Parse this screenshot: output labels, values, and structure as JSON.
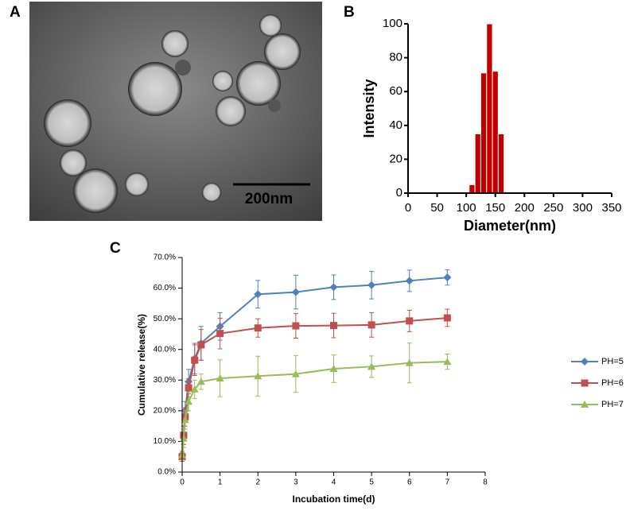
{
  "image": {
    "label": "A",
    "scale_bar": "200nm"
  },
  "chart_data": [
    {
      "type": "histogram",
      "panel_label": "B",
      "xlabel": "Diameter(nm)",
      "ylabel": "Intensity",
      "bins": [
        105,
        115,
        125,
        135,
        145,
        155,
        165
      ],
      "counts": [
        5,
        35,
        71,
        100,
        72,
        35
      ],
      "color": "#c00000",
      "xlim": [
        0,
        350
      ],
      "xticks": [
        0,
        50,
        100,
        150,
        200,
        250,
        300,
        350
      ],
      "ylim": [
        0,
        100
      ],
      "yticks": [
        0,
        20,
        40,
        60,
        80,
        100
      ]
    },
    {
      "type": "line",
      "panel_label": "C",
      "xlabel": "Incubation time(d)",
      "ylabel": "Cumulative release(%)",
      "x": [
        0,
        0.04,
        0.08,
        0.17,
        0.33,
        0.5,
        1,
        2,
        3,
        4,
        5,
        6,
        7
      ],
      "series": [
        {
          "name": "PH=5",
          "color": "#4f81bd",
          "marker": "diamond",
          "values": [
            5.5,
            12,
            20,
            29.5,
            37,
            42,
            47.5,
            58,
            58.7,
            60.3,
            61,
            62.4,
            63.5
          ],
          "errors": [
            1.5,
            3,
            3,
            4,
            5,
            5.5,
            4.5,
            4.5,
            5.5,
            4,
            4.5,
            3.5,
            2.5
          ]
        },
        {
          "name": "PH=6",
          "color": "#c0504d",
          "marker": "square",
          "values": [
            5,
            12,
            18,
            27.5,
            36.5,
            41.5,
            45.2,
            47,
            47.7,
            47.8,
            48,
            49.3,
            50.3
          ],
          "errors": [
            1.5,
            3,
            3,
            3,
            5,
            5,
            5,
            3,
            4,
            4,
            4,
            3.5,
            2.8
          ]
        },
        {
          "name": "PH=7",
          "color": "#9bbb59",
          "marker": "triangle",
          "values": [
            5.5,
            11,
            17,
            23,
            27,
            29.5,
            30.6,
            31.3,
            32,
            33.7,
            34.4,
            35.6,
            36
          ],
          "errors": [
            1.5,
            3,
            3,
            3,
            3,
            2.5,
            6,
            6.5,
            6,
            4.5,
            3.5,
            6.5,
            2.5
          ]
        }
      ],
      "xlim": [
        0,
        8
      ],
      "xticks": [
        0,
        1,
        2,
        3,
        4,
        5,
        6,
        7,
        8
      ],
      "ylim": [
        0,
        70
      ],
      "yticks": [
        {
          "value": 0,
          "label": "0.0%"
        },
        {
          "value": 10,
          "label": "10.0%"
        },
        {
          "value": 20,
          "label": "20.0%"
        },
        {
          "value": 30,
          "label": "30.0%"
        },
        {
          "value": 40,
          "label": "40.0%"
        },
        {
          "value": 50,
          "label": "50.0%"
        },
        {
          "value": 60,
          "label": "60.0%"
        },
        {
          "value": 70,
          "label": "70.0%"
        }
      ],
      "legend": "right"
    }
  ]
}
